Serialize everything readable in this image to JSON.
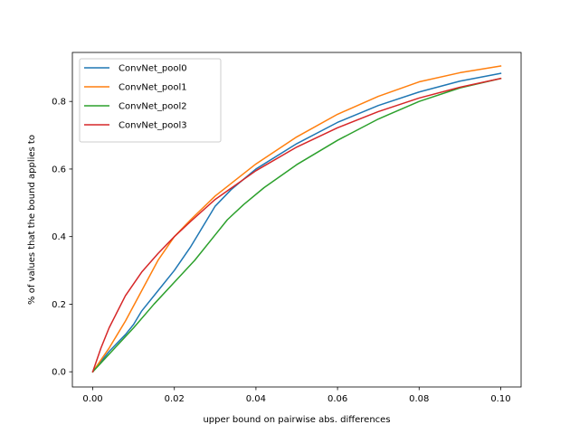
{
  "chart_data": {
    "type": "line",
    "title": "",
    "xlabel": "upper bound on pairwise abs. differences",
    "ylabel": "% of values that the bound applies to",
    "xlim": [
      -0.005,
      0.105
    ],
    "ylim": [
      -0.045,
      0.945
    ],
    "xticks": [
      0.0,
      0.02,
      0.04,
      0.06,
      0.08,
      0.1
    ],
    "xtick_labels": [
      "0.00",
      "0.02",
      "0.04",
      "0.06",
      "0.08",
      "0.10"
    ],
    "yticks": [
      0.0,
      0.2,
      0.4,
      0.6,
      0.8
    ],
    "ytick_labels": [
      "0.0",
      "0.2",
      "0.4",
      "0.6",
      "0.8"
    ],
    "grid": false,
    "legend_position": "top-left",
    "series": [
      {
        "name": "ConvNet_pool0",
        "color": "#1f77b4",
        "x": [
          0.0,
          0.004,
          0.008,
          0.01,
          0.012,
          0.016,
          0.02,
          0.024,
          0.026,
          0.028,
          0.03,
          0.034,
          0.04,
          0.05,
          0.06,
          0.07,
          0.08,
          0.09,
          0.1
        ],
        "y": [
          0.0,
          0.06,
          0.11,
          0.14,
          0.18,
          0.24,
          0.3,
          0.37,
          0.41,
          0.45,
          0.49,
          0.54,
          0.6,
          0.675,
          0.738,
          0.788,
          0.828,
          0.86,
          0.883
        ]
      },
      {
        "name": "ConvNet_pool1",
        "color": "#ff7f0e",
        "x": [
          0.0,
          0.004,
          0.008,
          0.012,
          0.016,
          0.02,
          0.024,
          0.03,
          0.04,
          0.05,
          0.06,
          0.07,
          0.08,
          0.09,
          0.1
        ],
        "y": [
          0.0,
          0.07,
          0.15,
          0.24,
          0.33,
          0.4,
          0.45,
          0.52,
          0.615,
          0.695,
          0.762,
          0.815,
          0.858,
          0.885,
          0.905
        ]
      },
      {
        "name": "ConvNet_pool2",
        "color": "#2ca02c",
        "x": [
          0.0,
          0.005,
          0.01,
          0.015,
          0.02,
          0.025,
          0.03,
          0.033,
          0.037,
          0.042,
          0.05,
          0.06,
          0.07,
          0.08,
          0.09,
          0.1
        ],
        "y": [
          0.0,
          0.065,
          0.13,
          0.2,
          0.265,
          0.33,
          0.405,
          0.45,
          0.495,
          0.545,
          0.613,
          0.685,
          0.748,
          0.8,
          0.84,
          0.868
        ]
      },
      {
        "name": "ConvNet_pool3",
        "color": "#d62728",
        "x": [
          0.0,
          0.002,
          0.004,
          0.008,
          0.012,
          0.016,
          0.02,
          0.024,
          0.03,
          0.04,
          0.05,
          0.06,
          0.07,
          0.08,
          0.09,
          0.1
        ],
        "y": [
          0.0,
          0.07,
          0.13,
          0.225,
          0.295,
          0.35,
          0.4,
          0.445,
          0.51,
          0.595,
          0.665,
          0.722,
          0.77,
          0.81,
          0.842,
          0.868
        ]
      }
    ]
  }
}
